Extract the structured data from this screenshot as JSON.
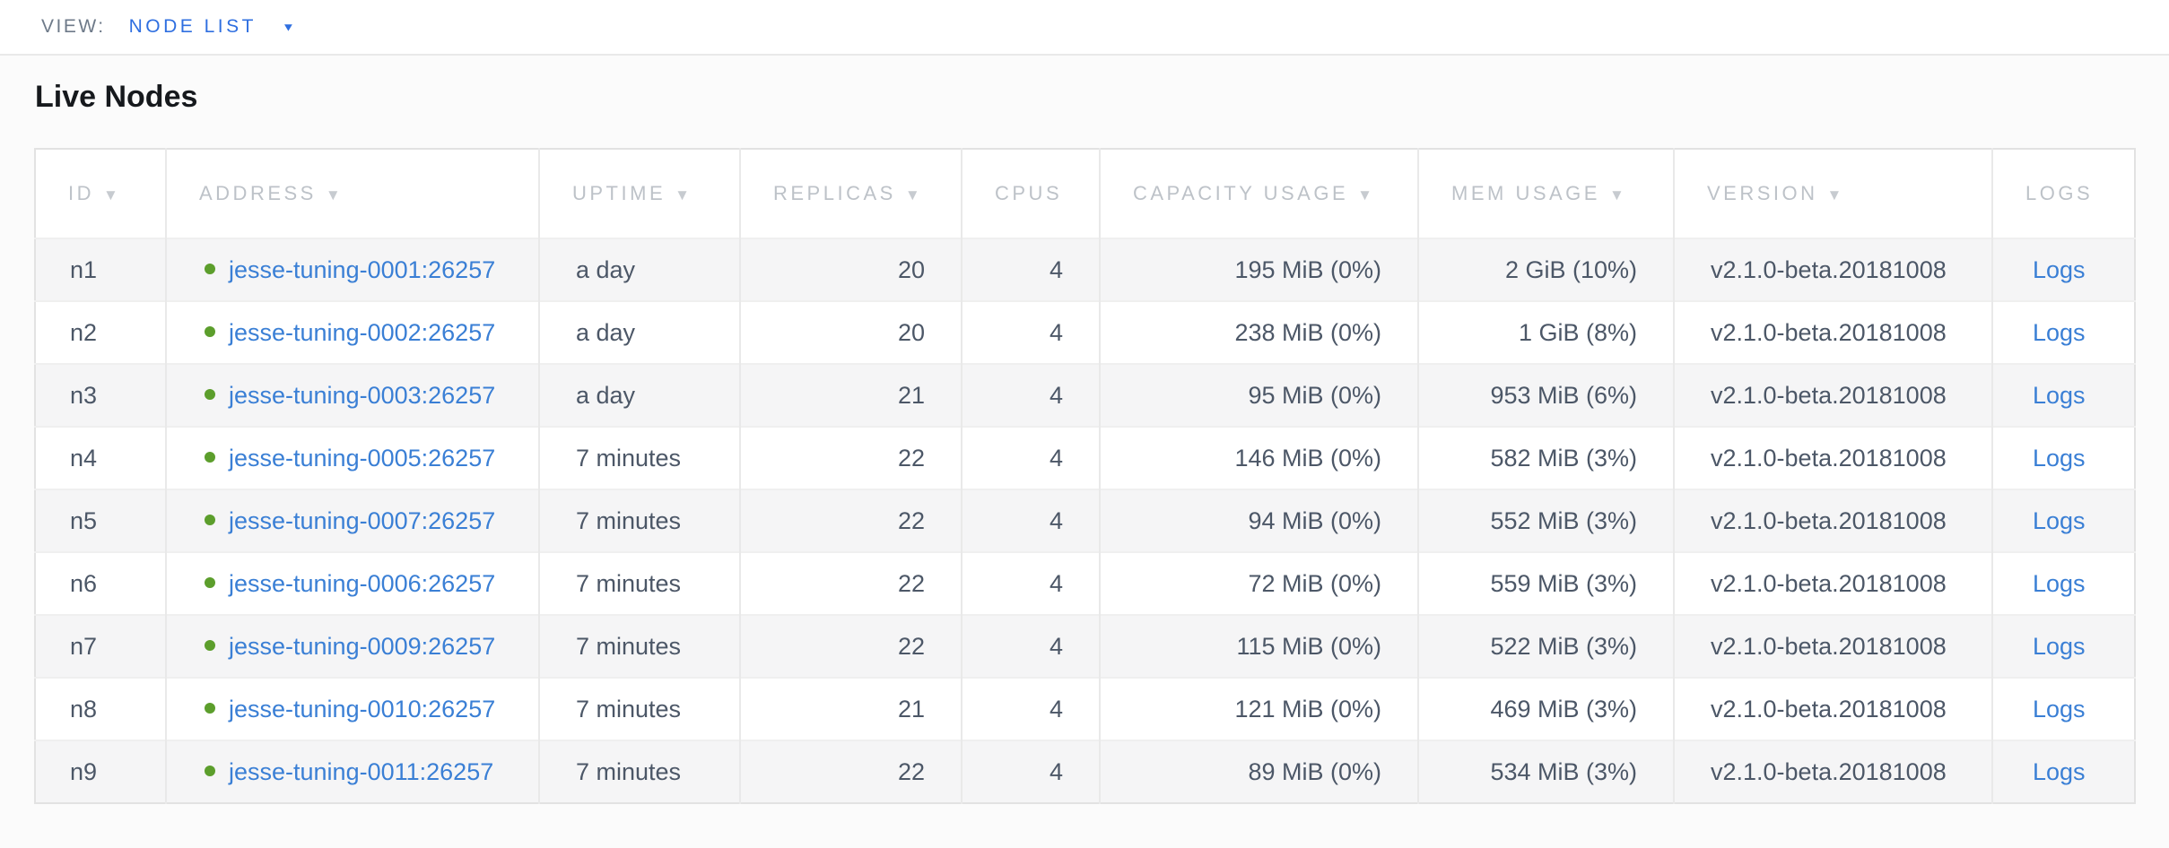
{
  "view_bar": {
    "label": "VIEW:",
    "dropdown": {
      "value": "NODE LIST"
    }
  },
  "page": {
    "heading": "Live Nodes"
  },
  "icons": {
    "dropdown-caret-icon": "▼",
    "sort-descending-icon": "▼",
    "node-live-dot": "●"
  },
  "colors": {
    "nav_blue": "#2f6fe0",
    "link_blue": "#3a7fd5",
    "live_green": "#5c9e2c",
    "header_gray": "#bdc2c8",
    "cell_text": "#4c5767",
    "row_stripe": "#f5f5f6"
  },
  "table": {
    "columns": [
      {
        "label": "ID",
        "sorted": true
      },
      {
        "label": "ADDRESS",
        "sorted": true
      },
      {
        "label": "UPTIME",
        "sorted": true
      },
      {
        "label": "REPLICAS",
        "sorted": true
      },
      {
        "label": "CPUS",
        "sorted": false
      },
      {
        "label": "CAPACITY USAGE",
        "sorted": true
      },
      {
        "label": "MEM USAGE",
        "sorted": true
      },
      {
        "label": "VERSION",
        "sorted": true
      },
      {
        "label": "LOGS",
        "sorted": false
      }
    ],
    "rows": [
      {
        "id": "n1",
        "address": "jesse-tuning-0001:26257",
        "uptime": "a day",
        "replicas": "20",
        "cpus": "4",
        "capacity": "195 MiB (0%)",
        "mem": "2 GiB (10%)",
        "version": "v2.1.0-beta.20181008",
        "logs": "Logs"
      },
      {
        "id": "n2",
        "address": "jesse-tuning-0002:26257",
        "uptime": "a day",
        "replicas": "20",
        "cpus": "4",
        "capacity": "238 MiB (0%)",
        "mem": "1 GiB (8%)",
        "version": "v2.1.0-beta.20181008",
        "logs": "Logs"
      },
      {
        "id": "n3",
        "address": "jesse-tuning-0003:26257",
        "uptime": "a day",
        "replicas": "21",
        "cpus": "4",
        "capacity": "95 MiB (0%)",
        "mem": "953 MiB (6%)",
        "version": "v2.1.0-beta.20181008",
        "logs": "Logs"
      },
      {
        "id": "n4",
        "address": "jesse-tuning-0005:26257",
        "uptime": "7 minutes",
        "replicas": "22",
        "cpus": "4",
        "capacity": "146 MiB (0%)",
        "mem": "582 MiB (3%)",
        "version": "v2.1.0-beta.20181008",
        "logs": "Logs"
      },
      {
        "id": "n5",
        "address": "jesse-tuning-0007:26257",
        "uptime": "7 minutes",
        "replicas": "22",
        "cpus": "4",
        "capacity": "94 MiB (0%)",
        "mem": "552 MiB (3%)",
        "version": "v2.1.0-beta.20181008",
        "logs": "Logs"
      },
      {
        "id": "n6",
        "address": "jesse-tuning-0006:26257",
        "uptime": "7 minutes",
        "replicas": "22",
        "cpus": "4",
        "capacity": "72 MiB (0%)",
        "mem": "559 MiB (3%)",
        "version": "v2.1.0-beta.20181008",
        "logs": "Logs"
      },
      {
        "id": "n7",
        "address": "jesse-tuning-0009:26257",
        "uptime": "7 minutes",
        "replicas": "22",
        "cpus": "4",
        "capacity": "115 MiB (0%)",
        "mem": "522 MiB (3%)",
        "version": "v2.1.0-beta.20181008",
        "logs": "Logs"
      },
      {
        "id": "n8",
        "address": "jesse-tuning-0010:26257",
        "uptime": "7 minutes",
        "replicas": "21",
        "cpus": "4",
        "capacity": "121 MiB (0%)",
        "mem": "469 MiB (3%)",
        "version": "v2.1.0-beta.20181008",
        "logs": "Logs"
      },
      {
        "id": "n9",
        "address": "jesse-tuning-0011:26257",
        "uptime": "7 minutes",
        "replicas": "22",
        "cpus": "4",
        "capacity": "89 MiB (0%)",
        "mem": "534 MiB (3%)",
        "version": "v2.1.0-beta.20181008",
        "logs": "Logs"
      }
    ]
  }
}
